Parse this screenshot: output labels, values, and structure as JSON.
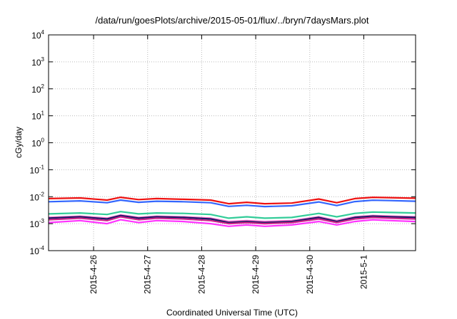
{
  "chart_data": {
    "type": "line",
    "title": "/data/run/goesPlots/archive/2015-05-01/flux/../bryn/7daysMars.plot",
    "xlabel": "Coordinated Universal Time (UTC)",
    "ylabel": "cGy/day",
    "yscale": "log",
    "ylim": [
      0.0001,
      10000
    ],
    "xlim": [
      "2015-04-25 04:00",
      "2015-05-01 23:00"
    ],
    "grid": true,
    "y_ticks": [
      {
        "base": "10",
        "exp": "4"
      },
      {
        "base": "10",
        "exp": "3"
      },
      {
        "base": "10",
        "exp": "2"
      },
      {
        "base": "10",
        "exp": "1"
      },
      {
        "base": "10",
        "exp": "0"
      },
      {
        "base": "10",
        "exp": "-1"
      },
      {
        "base": "10",
        "exp": "-2"
      },
      {
        "base": "10",
        "exp": "-3"
      },
      {
        "base": "10",
        "exp": "-4"
      }
    ],
    "x_ticks": [
      "2015-4-26",
      "2015-4-27",
      "2015-4-28",
      "2015-4-29",
      "2015-4-30",
      "2015-5-1"
    ],
    "x_tick_dates": [
      "2015-04-26",
      "2015-04-27",
      "2015-04-28",
      "2015-04-29",
      "2015-04-30",
      "2015-05-01"
    ],
    "x": [
      "2015-04-25 04:00",
      "2015-04-25 18:00",
      "2015-04-26 06:00",
      "2015-04-26 12:00",
      "2015-04-26 20:00",
      "2015-04-27 04:00",
      "2015-04-27 16:00",
      "2015-04-28 04:00",
      "2015-04-28 12:00",
      "2015-04-28 20:00",
      "2015-04-29 04:00",
      "2015-04-29 16:00",
      "2015-04-30 04:00",
      "2015-04-30 12:00",
      "2015-04-30 20:00",
      "2015-05-01 04:00",
      "2015-05-01 12:00",
      "2015-05-01 23:00"
    ],
    "series": [
      {
        "color": "#ee1111",
        "values": [
          0.0085,
          0.009,
          0.0075,
          0.0095,
          0.0078,
          0.0085,
          0.008,
          0.0075,
          0.0055,
          0.0062,
          0.0055,
          0.0058,
          0.0082,
          0.006,
          0.0085,
          0.0095,
          0.0092,
          0.0088
        ]
      },
      {
        "color": "#3366ff",
        "values": [
          0.0065,
          0.007,
          0.006,
          0.0075,
          0.0062,
          0.0068,
          0.0065,
          0.006,
          0.0044,
          0.0048,
          0.0043,
          0.0046,
          0.0064,
          0.0047,
          0.0066,
          0.0074,
          0.0072,
          0.0068
        ]
      },
      {
        "color": "#33cc99",
        "values": [
          0.0023,
          0.0025,
          0.0022,
          0.0028,
          0.0023,
          0.0025,
          0.0024,
          0.0022,
          0.0016,
          0.0018,
          0.0016,
          0.0017,
          0.0024,
          0.0018,
          0.0024,
          0.0027,
          0.0026,
          0.0025
        ]
      },
      {
        "color": "#ff66cc",
        "values": [
          0.0017,
          0.0019,
          0.0016,
          0.0021,
          0.0017,
          0.0019,
          0.0018,
          0.0016,
          0.0012,
          0.0013,
          0.0012,
          0.0013,
          0.0018,
          0.0013,
          0.0018,
          0.002,
          0.0019,
          0.0018
        ]
      },
      {
        "color": "#1a1a66",
        "values": [
          0.0016,
          0.0018,
          0.0015,
          0.002,
          0.0016,
          0.0018,
          0.0017,
          0.0015,
          0.0011,
          0.0012,
          0.0011,
          0.0012,
          0.0017,
          0.0012,
          0.0017,
          0.0019,
          0.0018,
          0.0017
        ]
      },
      {
        "color": "#cc2288",
        "values": [
          0.0014,
          0.0016,
          0.0013,
          0.0018,
          0.0014,
          0.0016,
          0.0015,
          0.0013,
          0.001,
          0.0011,
          0.001,
          0.0011,
          0.0015,
          0.0011,
          0.0015,
          0.0017,
          0.0016,
          0.0015
        ]
      },
      {
        "color": "#ff33ff",
        "values": [
          0.0011,
          0.0013,
          0.001,
          0.0014,
          0.0011,
          0.0013,
          0.0012,
          0.001,
          0.0008,
          0.0009,
          0.0008,
          0.0009,
          0.0012,
          0.0009,
          0.0012,
          0.0014,
          0.0013,
          0.0012
        ]
      }
    ]
  }
}
